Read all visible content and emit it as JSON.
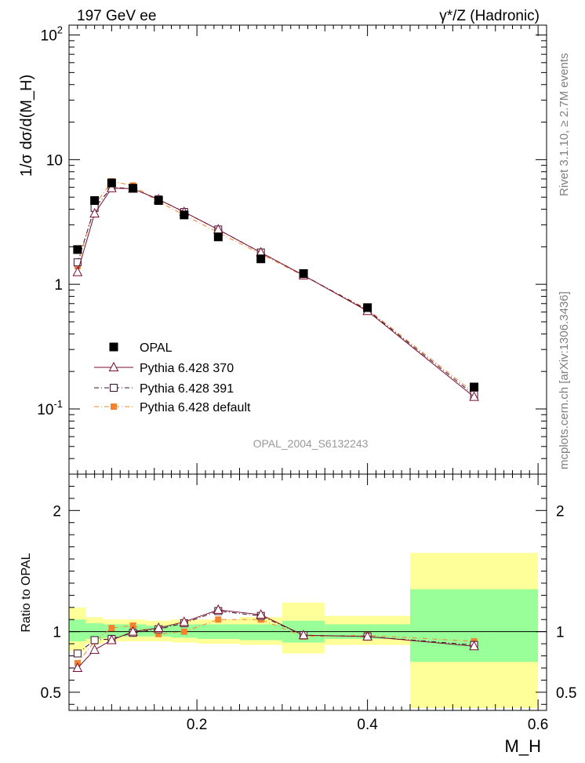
{
  "header": {
    "left": "197 GeV ee",
    "right": "γ*/Z (Hadronic)"
  },
  "side": {
    "rivet": "Rivet 3.1.10, ≥ 2.7M events",
    "mcplots": "mcplots.cern.ch [arXiv:1306.3436]"
  },
  "analysis_id": "OPAL_2004_S6132243",
  "colors": {
    "data": "#000000",
    "p370": "#7a0d2e",
    "p391": "#3a1030",
    "pdefault": "#f5822e",
    "band_inner": "#99ff99",
    "band_outer": "#ffff99"
  },
  "chart_data": [
    {
      "type": "scatter",
      "yscale": "log",
      "ylabel": "1/σ dσ/d(M_H)",
      "xlim": [
        0.05,
        0.61
      ],
      "ylim": [
        0.03,
        120
      ],
      "yticks": [
        0.1,
        1,
        10,
        100
      ],
      "ytick_labels": [
        "10^-1",
        "1",
        "10",
        "10^2"
      ],
      "legend_placement": "lower-left",
      "series": [
        {
          "name": "OPAL",
          "marker": "filled-square",
          "x": [
            0.06,
            0.08,
            0.1,
            0.125,
            0.155,
            0.185,
            0.225,
            0.275,
            0.325,
            0.4,
            0.525
          ],
          "y": [
            1.9,
            4.7,
            6.5,
            5.9,
            4.7,
            3.6,
            2.4,
            1.6,
            1.22,
            0.65,
            0.15
          ]
        },
        {
          "name": "Pythia 6.428 370",
          "marker": "open-triangle",
          "line": "solid",
          "x": [
            0.06,
            0.08,
            0.1,
            0.125,
            0.155,
            0.185,
            0.225,
            0.275,
            0.325,
            0.4,
            0.525
          ],
          "y": [
            1.25,
            3.7,
            5.9,
            5.85,
            4.8,
            3.8,
            2.75,
            1.8,
            1.18,
            0.61,
            0.125
          ]
        },
        {
          "name": "Pythia 6.428 391",
          "marker": "open-square",
          "line": "dash-dot",
          "x": [
            0.06,
            0.08,
            0.1,
            0.125,
            0.155,
            0.185,
            0.225,
            0.275,
            0.325,
            0.4,
            0.525
          ],
          "y": [
            1.5,
            4.1,
            6.0,
            5.85,
            4.8,
            3.8,
            2.75,
            1.8,
            1.18,
            0.62,
            0.13
          ]
        },
        {
          "name": "Pythia 6.428 default",
          "marker": "filled-small-square",
          "line": "dash-dot",
          "x": [
            0.06,
            0.08,
            0.1,
            0.125,
            0.155,
            0.185,
            0.225,
            0.275,
            0.325,
            0.4,
            0.525
          ],
          "y": [
            1.4,
            4.3,
            6.7,
            6.2,
            4.6,
            3.6,
            2.6,
            1.75,
            1.17,
            0.63,
            0.135
          ]
        }
      ]
    },
    {
      "type": "scatter",
      "ylabel": "Ratio to OPAL",
      "xlabel": "M_H",
      "xlim": [
        0.05,
        0.61
      ],
      "ylim": [
        0.35,
        2.3
      ],
      "xticks": [
        0.2,
        0.4,
        0.6
      ],
      "xtick_labels": [
        "0.2",
        "0.4",
        "0.6"
      ],
      "yticks": [
        0.5,
        1,
        2
      ],
      "ytick_labels": [
        "0.5",
        "1",
        "2"
      ],
      "bin_edges": [
        0.05,
        0.07,
        0.09,
        0.11,
        0.14,
        0.17,
        0.2,
        0.25,
        0.3,
        0.35,
        0.45,
        0.6
      ],
      "band_inner": [
        [
          0.92,
          1.1
        ],
        [
          0.94,
          1.07
        ],
        [
          0.95,
          1.06
        ],
        [
          0.96,
          1.06
        ],
        [
          0.96,
          1.05
        ],
        [
          0.95,
          1.06
        ],
        [
          0.94,
          1.06
        ],
        [
          0.93,
          1.06
        ],
        [
          0.91,
          1.09
        ],
        [
          0.94,
          1.06
        ],
        [
          0.75,
          1.35
        ]
      ],
      "band_outer": [
        [
          0.84,
          1.2
        ],
        [
          0.9,
          1.12
        ],
        [
          0.92,
          1.1
        ],
        [
          0.92,
          1.1
        ],
        [
          0.92,
          1.09
        ],
        [
          0.91,
          1.1
        ],
        [
          0.9,
          1.1
        ],
        [
          0.89,
          1.12
        ],
        [
          0.82,
          1.24
        ],
        [
          0.89,
          1.13
        ],
        [
          0.37,
          1.65
        ]
      ],
      "series": [
        {
          "name": "Pythia 6.428 370",
          "marker": "open-triangle",
          "line": "solid",
          "x": [
            0.06,
            0.08,
            0.1,
            0.125,
            0.155,
            0.185,
            0.225,
            0.275,
            0.325,
            0.4,
            0.525
          ],
          "y": [
            0.7,
            0.85,
            0.93,
            1.0,
            1.03,
            1.08,
            1.18,
            1.14,
            0.97,
            0.96,
            0.88
          ]
        },
        {
          "name": "Pythia 6.428 391",
          "marker": "open-square",
          "line": "dash-dot",
          "x": [
            0.06,
            0.08,
            0.1,
            0.125,
            0.155,
            0.185,
            0.225,
            0.275,
            0.325,
            0.4,
            0.525
          ],
          "y": [
            0.82,
            0.93,
            0.94,
            0.99,
            1.02,
            1.07,
            1.17,
            1.13,
            0.97,
            0.96,
            0.89
          ]
        },
        {
          "name": "Pythia 6.428 default",
          "marker": "filled-small-square",
          "line": "dash-dot",
          "x": [
            0.06,
            0.08,
            0.1,
            0.125,
            0.155,
            0.185,
            0.225,
            0.275,
            0.325,
            0.4,
            0.525
          ],
          "y": [
            0.74,
            0.92,
            1.03,
            1.05,
            0.98,
            1.0,
            1.1,
            1.1,
            0.96,
            0.97,
            0.92
          ]
        }
      ]
    }
  ]
}
